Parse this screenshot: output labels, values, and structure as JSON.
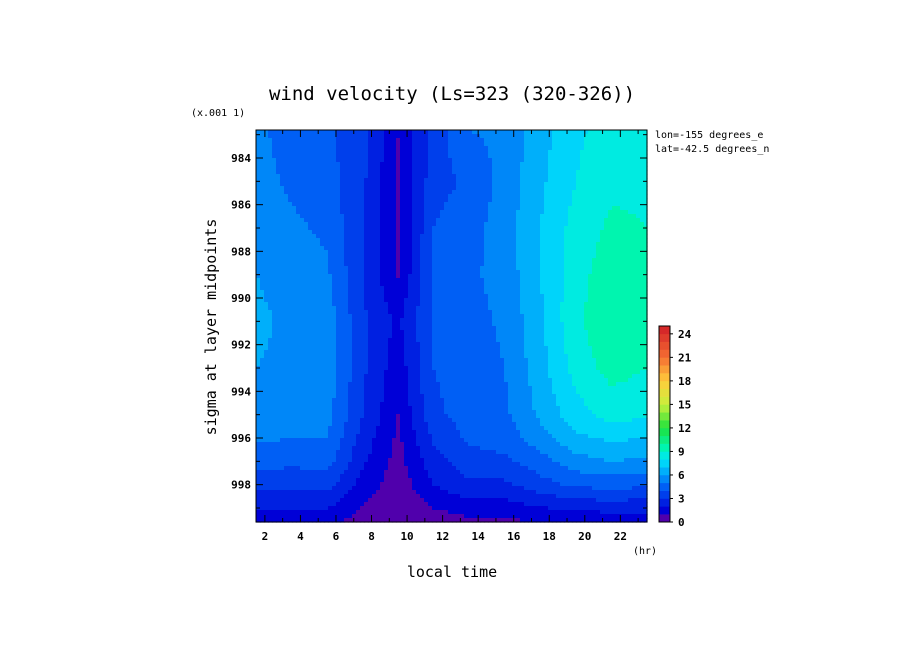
{
  "chart_data": {
    "type": "heatmap",
    "title": "wind velocity (Ls=323 (320-326))",
    "y_multiplier_label": "(x.001 1)",
    "xlabel": "local time",
    "x_unit_label": "(hr)",
    "ylabel": "sigma at layer midpoints",
    "annotations": [
      "lon=-155 degrees_e",
      "lat=-42.5 degrees_n"
    ],
    "xlim": [
      1.5,
      23.5
    ],
    "ylim": [
      982.8,
      999.6
    ],
    "y_inverted": true,
    "x_ticks": [
      "2",
      "4",
      "6",
      "8",
      "10",
      "12",
      "14",
      "16",
      "18",
      "20",
      "22"
    ],
    "y_ticks": [
      "984",
      "986",
      "988",
      "990",
      "992",
      "994",
      "996",
      "998"
    ],
    "x": [
      1.5,
      3.5,
      5.5,
      7.5,
      9.5,
      11.5,
      13.5,
      15.5,
      17.5,
      19.5,
      21.5,
      23.5
    ],
    "y": [
      982.8,
      985.0,
      987.0,
      989.0,
      991.0,
      993.0,
      995.0,
      996.0,
      997.0,
      998.0,
      998.6,
      999.2,
      999.6
    ],
    "z": [
      [
        5.2,
        4.6,
        4.2,
        3.4,
        1.0,
        3.4,
        5.0,
        5.2,
        6.6,
        7.8,
        8.4,
        8.4
      ],
      [
        5.4,
        4.8,
        4.4,
        3.2,
        0.9,
        3.6,
        4.2,
        5.4,
        6.8,
        8.0,
        8.8,
        8.8
      ],
      [
        5.8,
        5.2,
        4.8,
        3.0,
        0.9,
        4.0,
        4.6,
        5.5,
        7.0,
        8.4,
        9.2,
        9.0
      ],
      [
        6.0,
        5.6,
        5.2,
        3.0,
        0.9,
        4.2,
        4.8,
        5.4,
        7.0,
        8.6,
        9.6,
        9.2
      ],
      [
        6.2,
        5.8,
        5.6,
        3.2,
        1.8,
        4.2,
        4.6,
        5.2,
        6.8,
        8.8,
        9.8,
        9.4
      ],
      [
        6.0,
        5.8,
        5.6,
        3.2,
        1.4,
        4.0,
        4.4,
        5.0,
        6.6,
        8.4,
        9.4,
        9.0
      ],
      [
        5.8,
        5.6,
        5.4,
        3.0,
        1.0,
        3.8,
        4.4,
        4.8,
        6.2,
        7.6,
        8.4,
        8.2
      ],
      [
        5.2,
        5.0,
        5.0,
        2.6,
        0.8,
        3.2,
        4.2,
        4.4,
        5.6,
        6.8,
        7.2,
        7.0
      ],
      [
        4.4,
        4.2,
        4.4,
        2.2,
        0.6,
        2.6,
        3.6,
        3.8,
        4.6,
        5.6,
        6.0,
        5.8
      ],
      [
        3.4,
        3.4,
        3.4,
        1.6,
        0.4,
        2.0,
        2.8,
        2.8,
        3.6,
        4.2,
        4.4,
        4.2
      ],
      [
        2.6,
        2.6,
        2.6,
        1.2,
        0.2,
        1.4,
        2.0,
        2.0,
        2.6,
        3.0,
        3.2,
        3.0
      ],
      [
        1.8,
        1.8,
        1.8,
        0.8,
        0.1,
        0.8,
        1.2,
        1.2,
        1.6,
        1.8,
        2.0,
        2.0
      ],
      [
        1.2,
        1.2,
        1.2,
        0.6,
        0.0,
        0.6,
        0.8,
        0.8,
        1.0,
        1.2,
        1.4,
        1.4
      ]
    ],
    "colorbar": {
      "min": 0,
      "max": 25,
      "step": 1,
      "tick_labels": [
        "0",
        "3",
        "6",
        "9",
        "12",
        "15",
        "18",
        "21",
        "24"
      ]
    }
  }
}
